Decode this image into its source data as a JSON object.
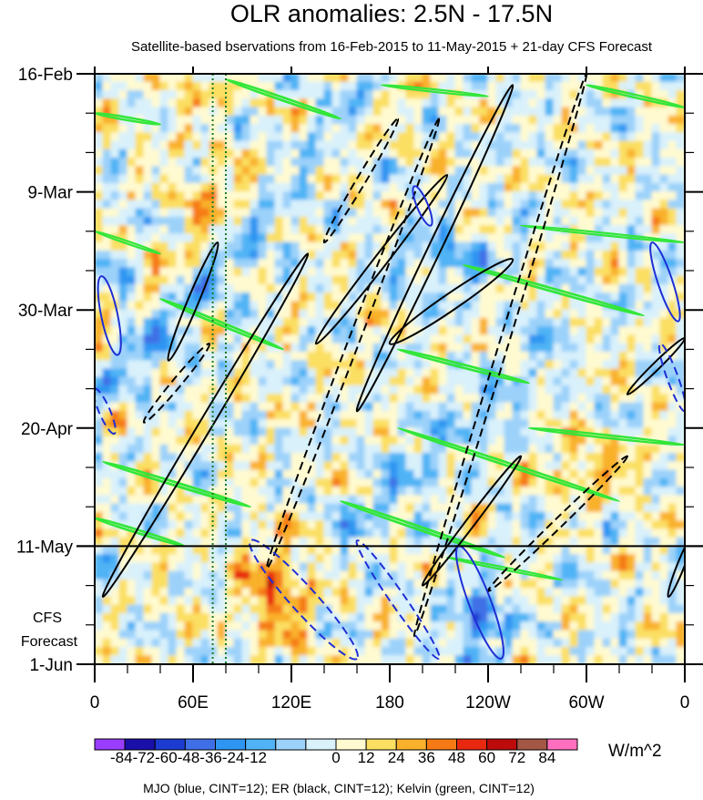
{
  "chart_data": {
    "type": "heatmap",
    "title": "OLR anomalies: 2.5N - 17.5N",
    "subtitle": "Satellite-based bservations from 16-Feb-2015 to 11-May-2015 + 21-day CFS Forecast",
    "x_ticks": [
      {
        "lon": 0,
        "label": "0"
      },
      {
        "lon": 60,
        "label": "60E"
      },
      {
        "lon": 120,
        "label": "120E"
      },
      {
        "lon": 180,
        "label": "180"
      },
      {
        "lon": 240,
        "label": "120W"
      },
      {
        "lon": 300,
        "label": "60W"
      },
      {
        "lon": 360,
        "label": "0"
      }
    ],
    "xlim": [
      0,
      360
    ],
    "y_ticks": [
      {
        "day": 0,
        "label": "16-Feb"
      },
      {
        "day": 21,
        "label": "9-Mar"
      },
      {
        "day": 42,
        "label": "30-Mar"
      },
      {
        "day": 63,
        "label": "20-Apr"
      },
      {
        "day": 84,
        "label": "11-May"
      },
      {
        "day": 105,
        "label": "1-Jun"
      }
    ],
    "ylim_days": [
      0,
      105
    ],
    "observation_end_day": 84,
    "forecast_label_1": "CFS",
    "forecast_label_2": "Forecast",
    "reference_lines_lon": [
      72,
      80
    ],
    "colorbar": {
      "unit": "W/m^2",
      "levels": [
        -84,
        -72,
        -60,
        -48,
        -36,
        -24,
        -12,
        0,
        12,
        24,
        36,
        48,
        60,
        72,
        84
      ],
      "level_labels_text": "-84-72-60-48-36-24-12",
      "positive_labels": [
        "0",
        "12",
        "24",
        "36",
        "48",
        "60",
        "72",
        "84"
      ],
      "colors": [
        "#9a3dff",
        "#1a0fa8",
        "#1c3bd1",
        "#3f6fe6",
        "#2f95f2",
        "#4fb3f5",
        "#9cd2fa",
        "#d9f1fb",
        "#fffad0",
        "#fbdf62",
        "#f9b12c",
        "#f57a15",
        "#e8290f",
        "#bd0a0a",
        "#a35745",
        "#ff6fbf"
      ]
    },
    "footer": "MJO (blue, CINT=12); ER (black, CINT=12); Kelvin (green, CINT=12)",
    "mjo_contours": [
      {
        "lon0": 4,
        "day0": 36,
        "lon1": 14,
        "day1": 50,
        "width": 9,
        "dashed": false
      },
      {
        "lon0": 222,
        "day0": 84,
        "lon1": 248,
        "day1": 104,
        "width": 12,
        "dashed": false
      },
      {
        "lon0": 195,
        "day0": 20,
        "lon1": 205,
        "day1": 27,
        "width": 6,
        "dashed": false
      },
      {
        "lon0": 340,
        "day0": 30,
        "lon1": 356,
        "day1": 44,
        "width": 8,
        "dashed": false
      },
      {
        "lon0": 95,
        "day0": 83,
        "lon1": 160,
        "day1": 104,
        "width": 14,
        "dashed": true
      },
      {
        "lon0": 0,
        "day0": 56,
        "lon1": 12,
        "day1": 64,
        "width": 6,
        "dashed": true
      },
      {
        "lon0": 160,
        "day0": 83,
        "lon1": 210,
        "day1": 104,
        "width": 8,
        "dashed": true
      },
      {
        "lon0": 345,
        "day0": 48,
        "lon1": 360,
        "day1": 60,
        "width": 6,
        "dashed": true
      }
    ],
    "er_contours": [
      {
        "lon0": 5,
        "day0": 93,
        "lon1": 130,
        "day1": 32,
        "width": 7,
        "dashed": false
      },
      {
        "lon0": 160,
        "day0": 60,
        "lon1": 255,
        "day1": 2,
        "width": 7,
        "dashed": false
      },
      {
        "lon0": 45,
        "day0": 51,
        "lon1": 75,
        "day1": 30,
        "width": 6,
        "dashed": false
      },
      {
        "lon0": 135,
        "day0": 48,
        "lon1": 215,
        "day1": 18,
        "width": 7,
        "dashed": false
      },
      {
        "lon0": 180,
        "day0": 48,
        "lon1": 255,
        "day1": 33,
        "width": 9,
        "dashed": false
      },
      {
        "lon0": 200,
        "day0": 91,
        "lon1": 260,
        "day1": 68,
        "width": 5,
        "dashed": false
      },
      {
        "lon0": 350,
        "day0": 93,
        "lon1": 365,
        "day1": 82,
        "width": 4,
        "dashed": false
      },
      {
        "lon0": 325,
        "day0": 57,
        "lon1": 360,
        "day1": 47,
        "width": 4,
        "dashed": false
      },
      {
        "lon0": 105,
        "day0": 88,
        "lon1": 210,
        "day1": 8,
        "width": 6,
        "dashed": true
      },
      {
        "lon0": 195,
        "day0": 100,
        "lon1": 300,
        "day1": 0,
        "width": 5,
        "dashed": true
      },
      {
        "lon0": 30,
        "day0": 62,
        "lon1": 70,
        "day1": 48,
        "width": 5,
        "dashed": true
      },
      {
        "lon0": 140,
        "day0": 30,
        "lon1": 185,
        "day1": 8,
        "width": 5,
        "dashed": true
      },
      {
        "lon0": 240,
        "day0": 92,
        "lon1": 325,
        "day1": 68,
        "width": 5,
        "dashed": true
      }
    ],
    "kelvin_contours": [
      {
        "lon0": 5,
        "day0": 69,
        "lon1": 95,
        "day1": 77,
        "width": 2.2
      },
      {
        "lon0": 0,
        "day0": 79,
        "lon1": 55,
        "day1": 84,
        "width": 2
      },
      {
        "lon0": 80,
        "day0": 1,
        "lon1": 150,
        "day1": 8,
        "width": 2
      },
      {
        "lon0": 0,
        "day0": 7,
        "lon1": 40,
        "day1": 9,
        "width": 1.8
      },
      {
        "lon0": 175,
        "day0": 2,
        "lon1": 240,
        "day1": 4,
        "width": 1.5
      },
      {
        "lon0": 300,
        "day0": 2,
        "lon1": 360,
        "day1": 6,
        "width": 1.8
      },
      {
        "lon0": 40,
        "day0": 40,
        "lon1": 115,
        "day1": 49,
        "width": 2
      },
      {
        "lon0": 225,
        "day0": 34,
        "lon1": 335,
        "day1": 43,
        "width": 2
      },
      {
        "lon0": 185,
        "day0": 49,
        "lon1": 265,
        "day1": 55,
        "width": 2
      },
      {
        "lon0": 265,
        "day0": 63,
        "lon1": 360,
        "day1": 66,
        "width": 1.8
      },
      {
        "lon0": 185,
        "day0": 63,
        "lon1": 320,
        "day1": 76,
        "width": 2
      },
      {
        "lon0": 150,
        "day0": 76,
        "lon1": 250,
        "day1": 86,
        "width": 2.2
      },
      {
        "lon0": 215,
        "day0": 86,
        "lon1": 285,
        "day1": 90,
        "width": 1.5
      },
      {
        "lon0": 260,
        "day0": 27,
        "lon1": 360,
        "day1": 30,
        "width": 1.5
      },
      {
        "lon0": 0,
        "day0": 28,
        "lon1": 40,
        "day1": 32,
        "width": 1.5
      }
    ]
  }
}
